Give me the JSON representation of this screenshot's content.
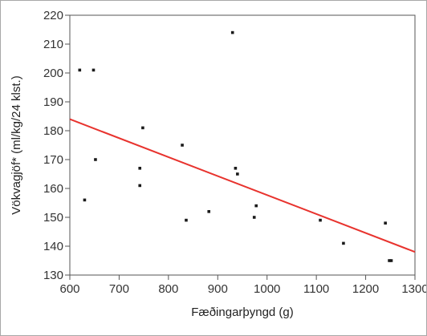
{
  "chart_data": {
    "type": "scatter",
    "xlabel": "Fæðingarþyngd (g)",
    "ylabel": "Vökvagjöf* (ml/kg/24 klst.)",
    "xlim": [
      600,
      1300
    ],
    "ylim": [
      130,
      220
    ],
    "x_ticks": [
      600,
      700,
      800,
      900,
      1000,
      1100,
      1200,
      1300
    ],
    "y_ticks": [
      130,
      140,
      150,
      160,
      170,
      180,
      190,
      200,
      210,
      220
    ],
    "grid": false,
    "points": [
      {
        "x": 620,
        "y": 201
      },
      {
        "x": 648,
        "y": 201
      },
      {
        "x": 630,
        "y": 156
      },
      {
        "x": 652,
        "y": 170
      },
      {
        "x": 748,
        "y": 181
      },
      {
        "x": 742,
        "y": 167
      },
      {
        "x": 742,
        "y": 161
      },
      {
        "x": 828,
        "y": 175
      },
      {
        "x": 836,
        "y": 149
      },
      {
        "x": 882,
        "y": 152
      },
      {
        "x": 930,
        "y": 214
      },
      {
        "x": 936,
        "y": 167
      },
      {
        "x": 940,
        "y": 165
      },
      {
        "x": 978,
        "y": 154
      },
      {
        "x": 974,
        "y": 150
      },
      {
        "x": 1108,
        "y": 149
      },
      {
        "x": 1155,
        "y": 141
      },
      {
        "x": 1240,
        "y": 148
      },
      {
        "x": 1248,
        "y": 135
      },
      {
        "x": 1252,
        "y": 135
      }
    ],
    "trendline": {
      "x": [
        600,
        1300
      ],
      "y": [
        184,
        138
      ],
      "color": "#e8332e"
    },
    "colors": {
      "points": "#1a1a1a",
      "axes": "#555555"
    }
  }
}
